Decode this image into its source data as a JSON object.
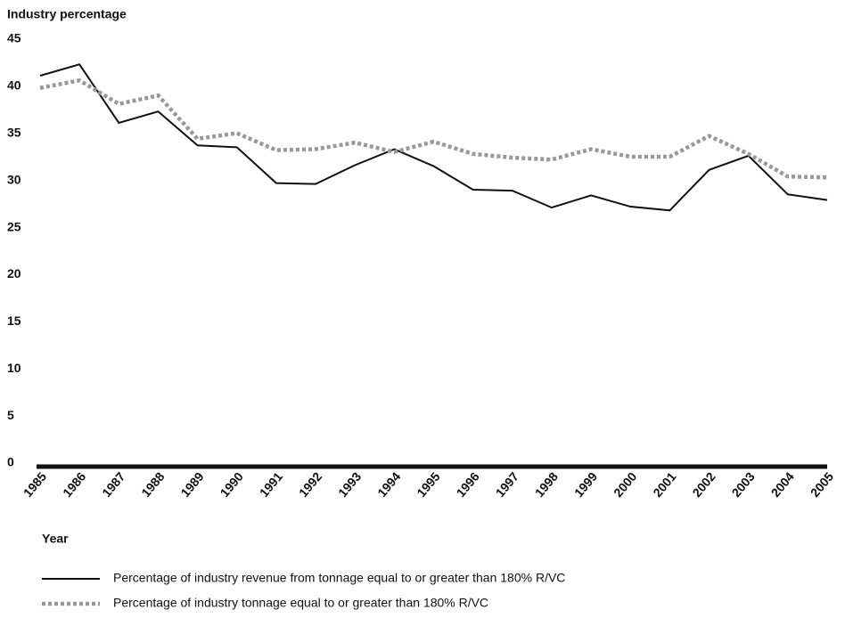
{
  "chart_data": {
    "type": "line",
    "y_label": "Industry percentage",
    "x_label": "Year",
    "categories": [
      "1985",
      "1986",
      "1987",
      "1988",
      "1989",
      "1990",
      "1991",
      "1992",
      "1993",
      "1994",
      "1995",
      "1996",
      "1997",
      "1998",
      "1999",
      "2000",
      "2001",
      "2002",
      "2003",
      "2004",
      "2005"
    ],
    "series": [
      {
        "name": "Percentage of industry revenue from tonnage equal to or greater than 180% R/VC",
        "color": "#111111",
        "style": "solid",
        "values": [
          41.5,
          42.7,
          36.5,
          37.7,
          34.1,
          33.9,
          30.1,
          30.0,
          32.0,
          33.7,
          31.9,
          29.4,
          29.3,
          27.5,
          28.8,
          27.6,
          27.2,
          31.5,
          33.0,
          28.9,
          28.3
        ]
      },
      {
        "name": "Percentage of industry tonnage equal to or greater than 180% R/VC",
        "color": "#999999",
        "style": "dotted",
        "values": [
          40.2,
          41.0,
          38.5,
          39.4,
          34.8,
          35.4,
          33.6,
          33.7,
          34.4,
          33.4,
          34.5,
          33.2,
          32.8,
          32.6,
          33.7,
          32.9,
          32.9,
          35.1,
          33.2,
          30.8,
          30.7
        ]
      }
    ],
    "ylim": [
      0,
      45
    ],
    "yticks": [
      0,
      5,
      10,
      15,
      20,
      25,
      30,
      35,
      40,
      45
    ],
    "grid": false
  }
}
